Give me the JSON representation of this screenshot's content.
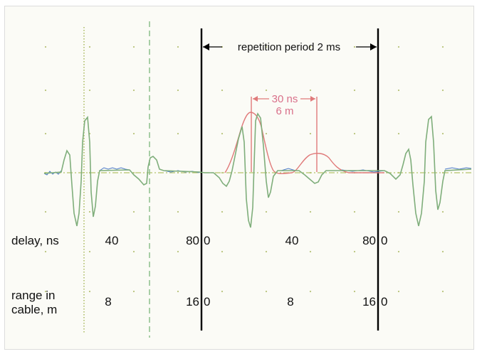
{
  "annotation": {
    "period_label": "repetition period 2 ms"
  },
  "pulse_width": {
    "time": "30 ns",
    "distance": "6 m"
  },
  "rows": {
    "delay": {
      "label": "delay, ns",
      "ticks": [
        "40",
        "80",
        "0",
        "40",
        "80",
        "0"
      ]
    },
    "range": {
      "label_line1": "range in",
      "label_line2": "cable, m",
      "ticks": [
        "8",
        "16",
        "0",
        "8",
        "16",
        "0"
      ]
    }
  },
  "colors": {
    "trace": "#7fae7b",
    "trace_noise": "#4a78c8",
    "envelope": "#e07a7a",
    "pink_text": "#d9708a",
    "marker_dotted": "#a8b85a",
    "marker_dashed": "#8cc08c"
  }
}
